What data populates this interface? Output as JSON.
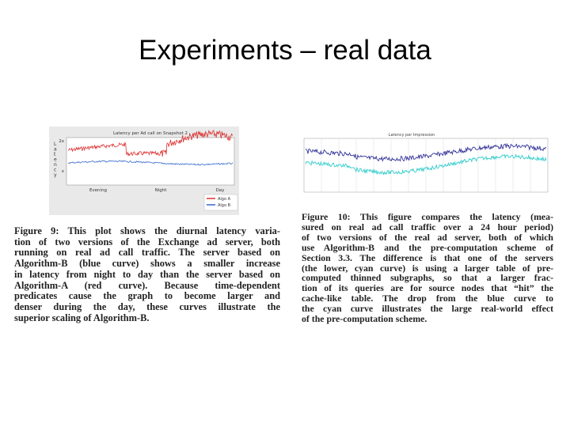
{
  "title": "Experiments – real data",
  "figure_left": {
    "title": "Latency per Ad call on Snapshot 2",
    "y_label": "Latency",
    "y_ticks": [
      "2x",
      "x"
    ],
    "x_ticks": [
      "Evening",
      "Night",
      "Day"
    ],
    "legend": [
      "Algo A",
      "Algo B"
    ]
  },
  "figure_right": {
    "title": "Latency per Impression"
  },
  "caption_left": [
    "Figure 9: This plot shows the diurnal latency varia-",
    "tion of two versions of the Exchange ad server, both",
    "running on real ad call traffic. The server based on",
    "Algorithm-B (blue curve) shows a smaller increase",
    "in latency from night to day than the server based on",
    "Algorithm-A (red curve). Because time-dependent",
    "predicates cause the graph to become larger and",
    "denser during the day, these curves illustrate the",
    "superior scaling of Algorithm-B."
  ],
  "caption_right": [
    "Figure 10: This figure compares the latency (mea-",
    "sured on real ad call traffic over a 24 hour period)",
    "of two versions of the real ad server, both of which",
    "use Algorithm-B and the pre-computation scheme of",
    "Section 3.3. The difference is that one of the servers",
    "(the lower, cyan curve) is using a larger table of pre-",
    "computed thinned subgraphs, so that a larger frac-",
    "tion of its queries are for source nodes that “hit” the",
    "cache-like table. The drop from the blue curve to",
    "the cyan curve illustrates the large real-world effect",
    "of the pre-computation scheme."
  ]
}
